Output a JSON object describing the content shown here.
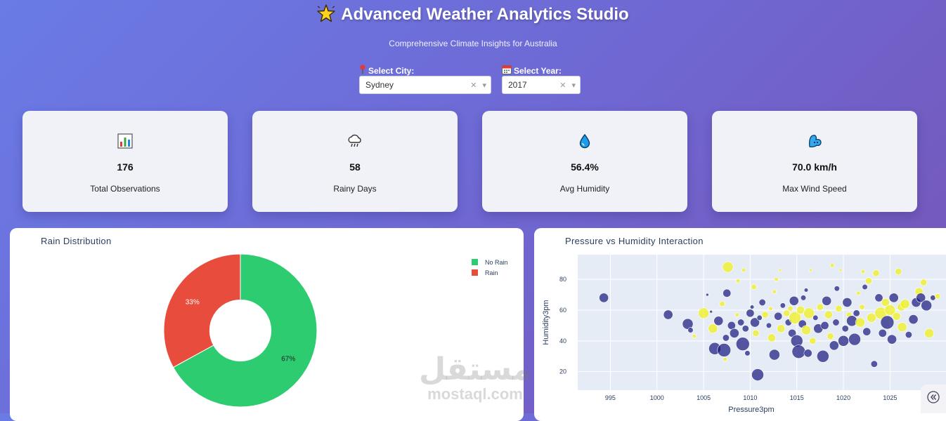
{
  "header": {
    "title": "Advanced Weather Analytics Studio",
    "subtitle": "Comprehensive Climate Insights for Australia"
  },
  "filters": {
    "city": {
      "label": "Select City:",
      "value": "Sydney"
    },
    "year": {
      "label": "Select Year:",
      "value": "2017"
    }
  },
  "kpis": [
    {
      "icon": "bar-chart-icon",
      "value": "176",
      "label": "Total Observations"
    },
    {
      "icon": "rain-cloud-icon",
      "value": "58",
      "label": "Rainy Days"
    },
    {
      "icon": "droplet-icon",
      "value": "56.4%",
      "label": "Avg Humidity"
    },
    {
      "icon": "wind-icon",
      "value": "70.0 km/h",
      "label": "Max Wind Speed"
    }
  ],
  "watermark": {
    "arabic": "مستقل",
    "latin": "mostaql.com"
  },
  "colors": {
    "no_rain": "#2ecc71",
    "rain": "#e74c3c",
    "scatter_dry": "#1a1a80",
    "scatter_wet": "#f0f01e",
    "plot_bg": "#e5ecf6"
  },
  "chart_data": [
    {
      "type": "pie",
      "title": "Rain Distribution",
      "hole": 0.4,
      "labels": [
        "No Rain",
        "Rain"
      ],
      "values": [
        67,
        33
      ],
      "text_labels": [
        "67%",
        "33%"
      ],
      "legend": "top-right"
    },
    {
      "type": "scatter",
      "title": "Pressure vs Humidity Interaction",
      "xlabel": "Pressure3pm",
      "ylabel": "Humidity3pm",
      "xlim": [
        991.5,
        1031
      ],
      "ylim": [
        8,
        96
      ],
      "xticks": [
        995,
        1000,
        1005,
        1010,
        1015,
        1020,
        1025
      ],
      "yticks": [
        20,
        40,
        60,
        80
      ],
      "points": [
        {
          "x": 994.3,
          "y": 68,
          "s": 7,
          "c": 0
        },
        {
          "x": 1001.2,
          "y": 57,
          "s": 7,
          "c": 0
        },
        {
          "x": 1003.3,
          "y": 51,
          "s": 8,
          "c": 0
        },
        {
          "x": 1003.6,
          "y": 47,
          "s": 4,
          "c": 0
        },
        {
          "x": 1004.0,
          "y": 43,
          "s": 3,
          "c": 1
        },
        {
          "x": 1005.0,
          "y": 58,
          "s": 8,
          "c": 1
        },
        {
          "x": 1005.4,
          "y": 70,
          "s": 2,
          "c": 0
        },
        {
          "x": 1005.8,
          "y": 59,
          "s": 1,
          "c": 0
        },
        {
          "x": 1006.0,
          "y": 48,
          "s": 7,
          "c": 1
        },
        {
          "x": 1006.2,
          "y": 35,
          "s": 9,
          "c": 0
        },
        {
          "x": 1006.6,
          "y": 53,
          "s": 7,
          "c": 0
        },
        {
          "x": 1007.0,
          "y": 64,
          "s": 4,
          "c": 1
        },
        {
          "x": 1007.2,
          "y": 34,
          "s": 10,
          "c": 0
        },
        {
          "x": 1007.3,
          "y": 28,
          "s": 3,
          "c": 1
        },
        {
          "x": 1007.4,
          "y": 42,
          "s": 5,
          "c": 0
        },
        {
          "x": 1007.5,
          "y": 71,
          "s": 6,
          "c": 0
        },
        {
          "x": 1007.6,
          "y": 88,
          "s": 8,
          "c": 1
        },
        {
          "x": 1008.0,
          "y": 50,
          "s": 6,
          "c": 0
        },
        {
          "x": 1008.3,
          "y": 45,
          "s": 7,
          "c": 0
        },
        {
          "x": 1008.6,
          "y": 57,
          "s": 3,
          "c": 1
        },
        {
          "x": 1008.7,
          "y": 79,
          "s": 3,
          "c": 1
        },
        {
          "x": 1009.0,
          "y": 52,
          "s": 5,
          "c": 0
        },
        {
          "x": 1009.2,
          "y": 38,
          "s": 10,
          "c": 0
        },
        {
          "x": 1009.3,
          "y": 86,
          "s": 3,
          "c": 1
        },
        {
          "x": 1009.5,
          "y": 48,
          "s": 5,
          "c": 0
        },
        {
          "x": 1009.7,
          "y": 32,
          "s": 4,
          "c": 0
        },
        {
          "x": 1010.0,
          "y": 58,
          "s": 6,
          "c": 0
        },
        {
          "x": 1010.2,
          "y": 62,
          "s": 3,
          "c": 0
        },
        {
          "x": 1010.4,
          "y": 75,
          "s": 4,
          "c": 1
        },
        {
          "x": 1010.5,
          "y": 52,
          "s": 7,
          "c": 0
        },
        {
          "x": 1010.6,
          "y": 45,
          "s": 5,
          "c": 1
        },
        {
          "x": 1010.8,
          "y": 18,
          "s": 9,
          "c": 0
        },
        {
          "x": 1011.0,
          "y": 55,
          "s": 4,
          "c": 0
        },
        {
          "x": 1011.3,
          "y": 65,
          "s": 5,
          "c": 0
        },
        {
          "x": 1011.6,
          "y": 57,
          "s": 5,
          "c": 1
        },
        {
          "x": 1012.0,
          "y": 50,
          "s": 4,
          "c": 0
        },
        {
          "x": 1012.2,
          "y": 61,
          "s": 3,
          "c": 1
        },
        {
          "x": 1012.3,
          "y": 42,
          "s": 6,
          "c": 1
        },
        {
          "x": 1012.6,
          "y": 31,
          "s": 8,
          "c": 0
        },
        {
          "x": 1012.6,
          "y": 72,
          "s": 3,
          "c": 1
        },
        {
          "x": 1012.8,
          "y": 80,
          "s": 3,
          "c": 1
        },
        {
          "x": 1013.0,
          "y": 56,
          "s": 6,
          "c": 0
        },
        {
          "x": 1013.2,
          "y": 86,
          "s": 2,
          "c": 1
        },
        {
          "x": 1013.3,
          "y": 48,
          "s": 6,
          "c": 1
        },
        {
          "x": 1013.5,
          "y": 63,
          "s": 4,
          "c": 0
        },
        {
          "x": 1013.9,
          "y": 58,
          "s": 5,
          "c": 1
        },
        {
          "x": 1014.1,
          "y": 52,
          "s": 5,
          "c": 0
        },
        {
          "x": 1014.3,
          "y": 61,
          "s": 4,
          "c": 1
        },
        {
          "x": 1014.5,
          "y": 45,
          "s": 6,
          "c": 0
        },
        {
          "x": 1014.7,
          "y": 66,
          "s": 7,
          "c": 0
        },
        {
          "x": 1014.8,
          "y": 55,
          "s": 9,
          "c": 1
        },
        {
          "x": 1015.0,
          "y": 40,
          "s": 9,
          "c": 0
        },
        {
          "x": 1015.2,
          "y": 33,
          "s": 10,
          "c": 0
        },
        {
          "x": 1015.4,
          "y": 60,
          "s": 6,
          "c": 1
        },
        {
          "x": 1015.6,
          "y": 51,
          "s": 6,
          "c": 0
        },
        {
          "x": 1015.7,
          "y": 68,
          "s": 4,
          "c": 0
        },
        {
          "x": 1016.0,
          "y": 47,
          "s": 7,
          "c": 1
        },
        {
          "x": 1016.0,
          "y": 73,
          "s": 3,
          "c": 0
        },
        {
          "x": 1016.2,
          "y": 32,
          "s": 6,
          "c": 0
        },
        {
          "x": 1016.3,
          "y": 58,
          "s": 8,
          "c": 1
        },
        {
          "x": 1016.5,
          "y": 86,
          "s": 2,
          "c": 1
        },
        {
          "x": 1016.7,
          "y": 40,
          "s": 5,
          "c": 1
        },
        {
          "x": 1017.0,
          "y": 55,
          "s": 4,
          "c": 0
        },
        {
          "x": 1017.3,
          "y": 48,
          "s": 7,
          "c": 0
        },
        {
          "x": 1017.5,
          "y": 62,
          "s": 5,
          "c": 1
        },
        {
          "x": 1017.8,
          "y": 30,
          "s": 9,
          "c": 0
        },
        {
          "x": 1018.0,
          "y": 50,
          "s": 6,
          "c": 0
        },
        {
          "x": 1018.2,
          "y": 66,
          "s": 7,
          "c": 0
        },
        {
          "x": 1018.4,
          "y": 57,
          "s": 6,
          "c": 1
        },
        {
          "x": 1018.6,
          "y": 43,
          "s": 5,
          "c": 1
        },
        {
          "x": 1018.8,
          "y": 89,
          "s": 3,
          "c": 1
        },
        {
          "x": 1019.0,
          "y": 37,
          "s": 7,
          "c": 0
        },
        {
          "x": 1019.2,
          "y": 52,
          "s": 5,
          "c": 0
        },
        {
          "x": 1019.3,
          "y": 74,
          "s": 4,
          "c": 0
        },
        {
          "x": 1019.5,
          "y": 61,
          "s": 5,
          "c": 1
        },
        {
          "x": 1019.7,
          "y": 86,
          "s": 2,
          "c": 1
        },
        {
          "x": 1020.0,
          "y": 40,
          "s": 8,
          "c": 0
        },
        {
          "x": 1020.2,
          "y": 48,
          "s": 5,
          "c": 0
        },
        {
          "x": 1020.4,
          "y": 65,
          "s": 7,
          "c": 0
        },
        {
          "x": 1020.6,
          "y": 57,
          "s": 4,
          "c": 1
        },
        {
          "x": 1020.9,
          "y": 53,
          "s": 8,
          "c": 0
        },
        {
          "x": 1021.2,
          "y": 41,
          "s": 9,
          "c": 0
        },
        {
          "x": 1021.4,
          "y": 58,
          "s": 5,
          "c": 0
        },
        {
          "x": 1021.6,
          "y": 71,
          "s": 3,
          "c": 1
        },
        {
          "x": 1021.8,
          "y": 52,
          "s": 7,
          "c": 1
        },
        {
          "x": 1022.0,
          "y": 62,
          "s": 4,
          "c": 1
        },
        {
          "x": 1022.1,
          "y": 85,
          "s": 3,
          "c": 1
        },
        {
          "x": 1022.3,
          "y": 75,
          "s": 4,
          "c": 0
        },
        {
          "x": 1022.5,
          "y": 46,
          "s": 6,
          "c": 0
        },
        {
          "x": 1022.7,
          "y": 79,
          "s": 5,
          "c": 1
        },
        {
          "x": 1023.0,
          "y": 55,
          "s": 7,
          "c": 1
        },
        {
          "x": 1023.3,
          "y": 25,
          "s": 5,
          "c": 0
        },
        {
          "x": 1023.5,
          "y": 84,
          "s": 5,
          "c": 1
        },
        {
          "x": 1023.8,
          "y": 68,
          "s": 6,
          "c": 0
        },
        {
          "x": 1024.0,
          "y": 58,
          "s": 9,
          "c": 1
        },
        {
          "x": 1024.2,
          "y": 45,
          "s": 6,
          "c": 0
        },
        {
          "x": 1024.5,
          "y": 65,
          "s": 6,
          "c": 1
        },
        {
          "x": 1024.7,
          "y": 52,
          "s": 10,
          "c": 0
        },
        {
          "x": 1025.0,
          "y": 60,
          "s": 8,
          "c": 1
        },
        {
          "x": 1025.2,
          "y": 41,
          "s": 7,
          "c": 0
        },
        {
          "x": 1025.4,
          "y": 68,
          "s": 7,
          "c": 0
        },
        {
          "x": 1025.7,
          "y": 56,
          "s": 6,
          "c": 1
        },
        {
          "x": 1025.9,
          "y": 85,
          "s": 5,
          "c": 1
        },
        {
          "x": 1026.2,
          "y": 62,
          "s": 6,
          "c": 1
        },
        {
          "x": 1026.3,
          "y": 49,
          "s": 7,
          "c": 1
        },
        {
          "x": 1026.6,
          "y": 64,
          "s": 7,
          "c": 1
        },
        {
          "x": 1027.0,
          "y": 44,
          "s": 5,
          "c": 0
        },
        {
          "x": 1027.5,
          "y": 54,
          "s": 7,
          "c": 0
        },
        {
          "x": 1027.8,
          "y": 65,
          "s": 7,
          "c": 0
        },
        {
          "x": 1028.1,
          "y": 72,
          "s": 6,
          "c": 1
        },
        {
          "x": 1028.3,
          "y": 68,
          "s": 7,
          "c": 0
        },
        {
          "x": 1028.6,
          "y": 78,
          "s": 5,
          "c": 1
        },
        {
          "x": 1028.9,
          "y": 63,
          "s": 8,
          "c": 0
        },
        {
          "x": 1029.2,
          "y": 45,
          "s": 7,
          "c": 1
        },
        {
          "x": 1029.6,
          "y": 68,
          "s": 4,
          "c": 0
        },
        {
          "x": 1030.1,
          "y": 69,
          "s": 4,
          "c": 1
        }
      ]
    }
  ]
}
